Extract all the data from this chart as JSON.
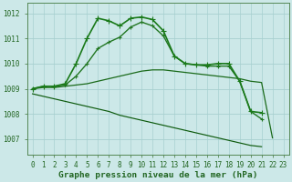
{
  "title": "Graphe pression niveau de la mer (hPa)",
  "hours": [
    0,
    1,
    2,
    3,
    4,
    5,
    6,
    7,
    8,
    9,
    10,
    11,
    12,
    13,
    14,
    15,
    16,
    17,
    18,
    19,
    20,
    21,
    22,
    23
  ],
  "series": [
    {
      "values": [
        1009.0,
        1009.1,
        1009.1,
        1009.2,
        1010.0,
        1011.0,
        1011.8,
        1011.7,
        1011.5,
        1011.8,
        1011.85,
        1011.75,
        1011.3,
        1010.3,
        1010.0,
        1009.95,
        1009.95,
        1010.0,
        1010.0,
        1009.3,
        1008.1,
        1008.05,
        null,
        null
      ],
      "color": "#1a7a1a",
      "linewidth": 1.2,
      "marker": "+",
      "markersize": 4.5,
      "zorder": 5
    },
    {
      "values": [
        1009.0,
        1009.1,
        1009.1,
        1009.15,
        1009.5,
        1010.0,
        1010.6,
        1010.85,
        1011.05,
        1011.45,
        1011.65,
        1011.5,
        1011.1,
        1010.3,
        1010.0,
        1009.95,
        1009.9,
        1009.9,
        1009.9,
        1009.3,
        1008.1,
        1007.8,
        null,
        null
      ],
      "color": "#227722",
      "linewidth": 1.0,
      "marker": "+",
      "markersize": 3.5,
      "zorder": 4
    },
    {
      "values": [
        1009.0,
        1009.05,
        1009.05,
        1009.1,
        1009.15,
        1009.2,
        1009.3,
        1009.4,
        1009.5,
        1009.6,
        1009.7,
        1009.75,
        1009.75,
        1009.7,
        1009.65,
        1009.6,
        1009.55,
        1009.5,
        1009.45,
        1009.4,
        1009.3,
        1009.25,
        1007.05,
        null
      ],
      "color": "#1a6a1a",
      "linewidth": 0.9,
      "marker": null,
      "markersize": 0,
      "zorder": 3
    },
    {
      "values": [
        1008.8,
        1008.7,
        1008.6,
        1008.5,
        1008.4,
        1008.3,
        1008.2,
        1008.1,
        1007.95,
        1007.85,
        1007.75,
        1007.65,
        1007.55,
        1007.45,
        1007.35,
        1007.25,
        1007.15,
        1007.05,
        1006.95,
        1006.85,
        1006.75,
        1006.7,
        null,
        null
      ],
      "color": "#0d5a0d",
      "linewidth": 0.85,
      "marker": null,
      "markersize": 0,
      "zorder": 2
    }
  ],
  "ylim": [
    1006.4,
    1012.4
  ],
  "yticks": [
    1007,
    1008,
    1009,
    1010,
    1011,
    1012
  ],
  "xlim": [
    -0.5,
    23.5
  ],
  "bg_color": "#cce8e8",
  "grid_color": "#a8d0d0",
  "spine_color": "#558855",
  "tick_color": "#226622",
  "title_color": "#226622",
  "title_fontsize": 6.8,
  "tick_fontsize": 5.5
}
